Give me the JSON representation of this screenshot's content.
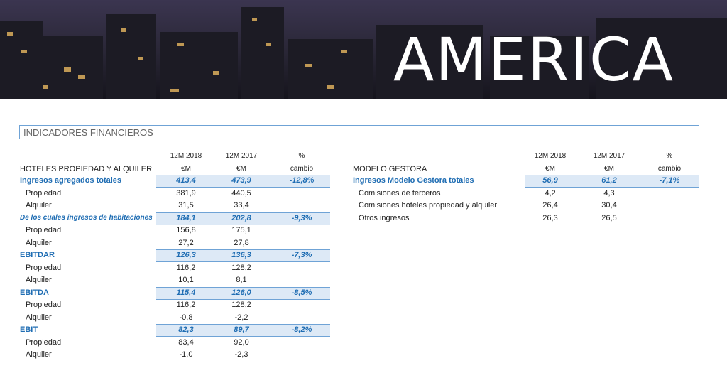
{
  "banner": {
    "title": "AMERICA"
  },
  "section": {
    "title": "INDICADORES FINANCIEROS"
  },
  "left_table": {
    "header": {
      "columns": [
        "12M 2018",
        "12M 2017",
        "%"
      ],
      "label": "HOTELES PROPIEDAD Y ALQUILER",
      "units": [
        "€M",
        "€M",
        "cambio"
      ]
    },
    "rows": [
      {
        "label": "Ingresos agregados totales",
        "values": [
          "413,4",
          "473,9",
          "-12,8%"
        ]
      },
      {
        "label": "Propiedad",
        "values": [
          "381,9",
          "440,5"
        ]
      },
      {
        "label": "Alquiler",
        "values": [
          "31,5",
          "33,4"
        ]
      },
      {
        "label": "De los cuales ingresos de habitaciones",
        "values": [
          "184,1",
          "202,8",
          "-9,3%"
        ]
      },
      {
        "label": "Propiedad",
        "values": [
          "156,8",
          "175,1"
        ]
      },
      {
        "label": "Alquiler",
        "values": [
          "27,2",
          "27,8"
        ]
      },
      {
        "label": "EBITDAR",
        "values": [
          "126,3",
          "136,3",
          "-7,3%"
        ]
      },
      {
        "label": "Propiedad",
        "values": [
          "116,2",
          "128,2"
        ]
      },
      {
        "label": "Alquiler",
        "values": [
          "10,1",
          "8,1"
        ]
      },
      {
        "label": "EBITDA",
        "values": [
          "115,4",
          "126,0",
          "-8,5%"
        ]
      },
      {
        "label": "Propiedad",
        "values": [
          "116,2",
          "128,2"
        ]
      },
      {
        "label": "Alquiler",
        "values": [
          "-0,8",
          "-2,2"
        ]
      },
      {
        "label": "EBIT",
        "values": [
          "82,3",
          "89,7",
          "-8,2%"
        ]
      },
      {
        "label": "Propiedad",
        "values": [
          "83,4",
          "92,0"
        ]
      },
      {
        "label": "Alquiler",
        "values": [
          "-1,0",
          "-2,3"
        ]
      }
    ]
  },
  "right_table": {
    "header": {
      "columns": [
        "12M 2018",
        "12M 2017",
        "%"
      ],
      "label": "MODELO GESTORA",
      "units": [
        "€M",
        "€M",
        "cambio"
      ]
    },
    "rows": [
      {
        "label": "Ingresos Modelo Gestora totales",
        "values": [
          "56,9",
          "61,2",
          "-7,1%"
        ]
      },
      {
        "label": "Comisiones de terceros",
        "values": [
          "4,2",
          "4,3"
        ]
      },
      {
        "label": "Comisiones hoteles propiedad y alquiler",
        "values": [
          "26,4",
          "30,4"
        ]
      },
      {
        "label": "Otros ingresos",
        "values": [
          "26,3",
          "26,5"
        ]
      }
    ]
  }
}
